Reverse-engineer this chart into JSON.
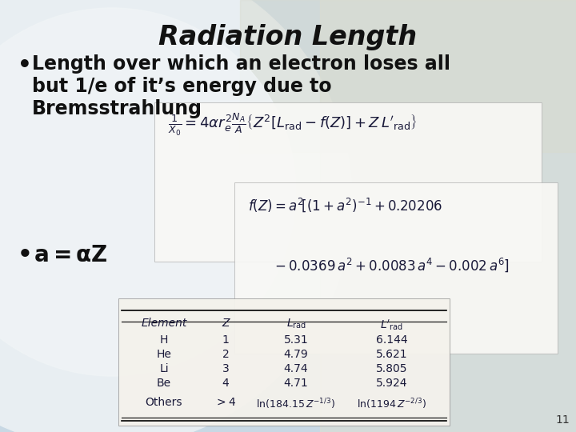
{
  "title": "Radiation Length",
  "bullet1_line1": "Length over which an electron loses all",
  "bullet1_line2": "but 1/e of it’s energy due to",
  "bullet1_line3": "Bremsstrahlung",
  "bullet2": "a=αZ",
  "slide_number": "11",
  "title_fontsize": 24,
  "body_fontsize": 17,
  "bullet2_fontsize": 18,
  "formula_fontsize": 11,
  "table_fontsize": 10,
  "bg_main": "#c8d8e4",
  "bg_circle_color": "#d0dfe8",
  "bg_right_color": "#dde5d8",
  "formula_box_color": "#f5f5f0",
  "table_box_color": "#f2f0ea",
  "text_color": "#111111",
  "formula_color": "#1a1a3a",
  "table_text_color": "#1a1a3a"
}
